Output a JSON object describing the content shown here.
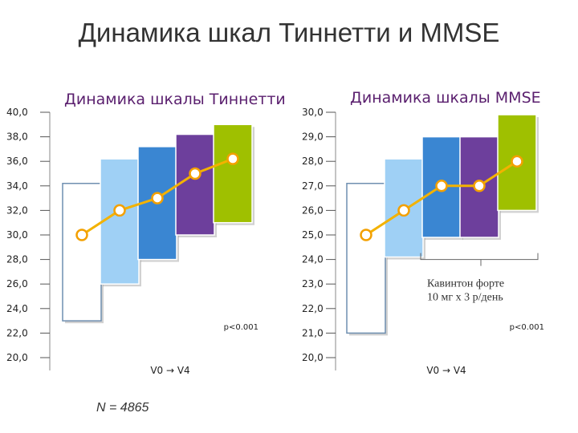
{
  "slide": {
    "title": "Динамика шкал Тиннетти и MMSE",
    "n_label": "N = 4865"
  },
  "chart_data": [
    {
      "type": "bar",
      "title": "Динамика шкалы Тиннетти",
      "ylim": [
        20,
        40
      ],
      "yticks": [
        "20,0",
        "22,0",
        "24,0",
        "26,0",
        "28,0",
        "30,0",
        "32,0",
        "34,0",
        "36,0",
        "38,0",
        "40,0"
      ],
      "floating_bars": [
        {
          "low": 23.0,
          "high": 34.2,
          "fill": "#ffffff"
        },
        {
          "low": 26.0,
          "high": 36.2,
          "fill": "#9fd0f5"
        },
        {
          "low": 28.0,
          "high": 37.2,
          "fill": "#3a86d2"
        },
        {
          "low": 30.0,
          "high": 38.2,
          "fill": "#6d3f9c"
        },
        {
          "low": 31.0,
          "high": 39.0,
          "fill": "#9fc000"
        }
      ],
      "line_values": [
        30.0,
        32.0,
        33.0,
        35.0,
        36.2
      ],
      "note": "p<0.001",
      "xlabel": "V0 → V4",
      "annotation": ""
    },
    {
      "type": "bar",
      "title": "Динамика шкалы MMSE",
      "ylim": [
        20,
        30
      ],
      "yticks": [
        "20,0",
        "21,0",
        "22,0",
        "23,0",
        "24,0",
        "25,0",
        "26,0",
        "27,0",
        "28,0",
        "29,0",
        "30,0"
      ],
      "floating_bars": [
        {
          "low": 21.0,
          "high": 27.1,
          "fill": "#ffffff"
        },
        {
          "low": 24.1,
          "high": 28.1,
          "fill": "#9fd0f5"
        },
        {
          "low": 24.9,
          "high": 29.0,
          "fill": "#3a86d2"
        },
        {
          "low": 24.9,
          "high": 29.0,
          "fill": "#6d3f9c"
        },
        {
          "low": 26.0,
          "high": 29.9,
          "fill": "#9fc000"
        }
      ],
      "line_values": [
        25.0,
        26.0,
        27.0,
        27.0,
        28.0
      ],
      "note": "p<0.001",
      "xlabel": "V0 → V4",
      "annotation": "Кавинтон форте\n10 мг х 3 р/день"
    }
  ]
}
